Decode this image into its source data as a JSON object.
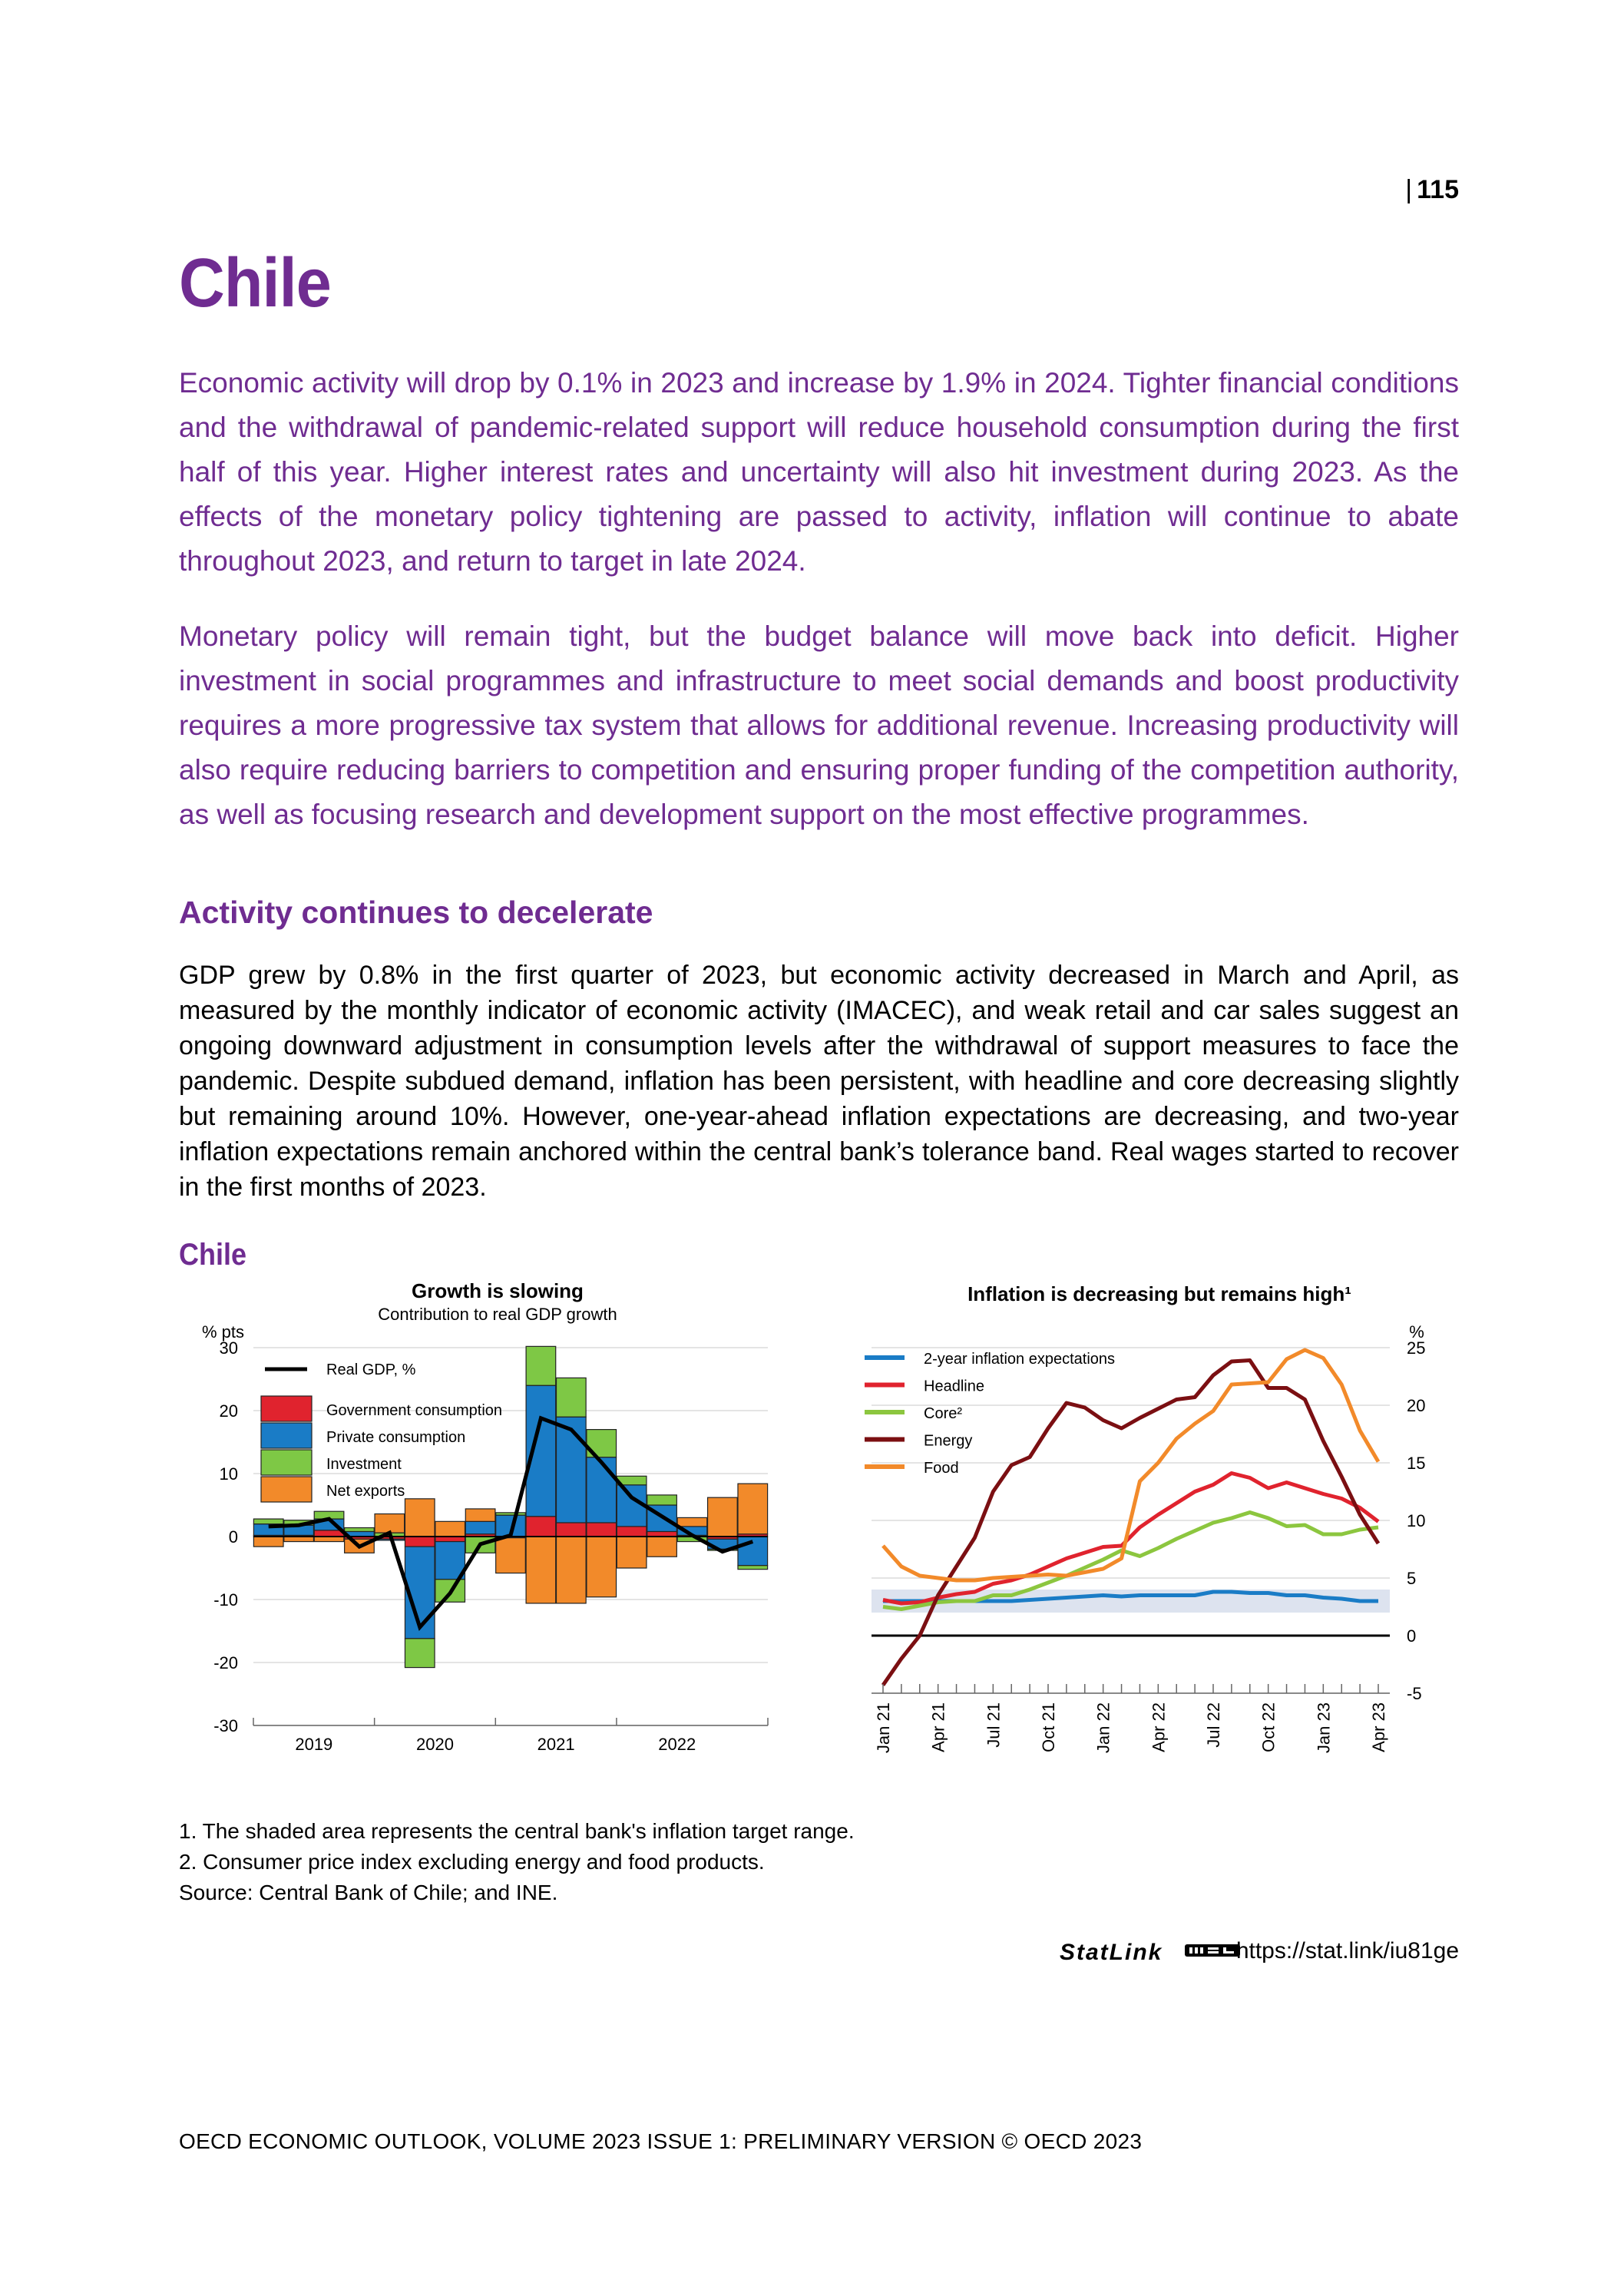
{
  "page": {
    "number": "115",
    "title": "Chile",
    "lead_paragraphs": [
      "Economic activity will drop by 0.1% in 2023 and increase by 1.9% in 2024. Tighter financial conditions and the withdrawal of pandemic-related support will reduce household consumption during the first half of this year. Higher interest rates and uncertainty will also hit investment during 2023. As the effects of the monetary policy tightening are passed to activity, inflation will continue to abate throughout 2023, and return to target in late 2024.",
      "Monetary policy will remain tight, but the budget balance will move back into deficit. Higher investment in social programmes and infrastructure to meet social demands and boost productivity requires a more progressive tax system that allows for additional revenue. Increasing productivity will also require reducing barriers to competition and ensuring proper funding of the competition authority, as well as focusing research and development support on the most effective programmes."
    ],
    "section_heading": "Activity continues to decelerate",
    "body": "GDP grew by 0.8% in the first quarter of 2023, but economic activity decreased in March and April, as measured by the monthly indicator of economic activity (IMACEC), and weak retail and car sales suggest an ongoing downward adjustment in consumption levels after the withdrawal of support measures to face the pandemic. Despite subdued demand, inflation has been persistent, with headline and core decreasing slightly but remaining around 10%. However, one-year-ahead inflation expectations are decreasing, and two-year inflation expectations remain anchored within the central bank’s tolerance band. Real wages started to recover in the first months of 2023.",
    "figure_title": "Chile",
    "notes": [
      "1. The shaded area represents the central bank's inflation target range.",
      "2. Consumer price index excluding energy and food products.",
      "Source: Central Bank of Chile; and INE."
    ],
    "statlink": {
      "label": "StatLink",
      "url": "https://stat.link/iu81ge"
    },
    "footer": "OECD ECONOMIC OUTLOOK, VOLUME 2023 ISSUE 1: PRELIMINARY VERSION © OECD 2023"
  },
  "chart_data": [
    {
      "type": "bar",
      "stacked": true,
      "title": "Growth is slowing",
      "subtitle": "Contribution to real GDP growth",
      "ylabel": "% pts",
      "ylim": [
        -30,
        30
      ],
      "yticks": [
        30,
        20,
        10,
        0,
        -10,
        -20,
        -30
      ],
      "x_tick_labels": [
        "2019",
        "2020",
        "2021",
        "2022"
      ],
      "categories": [
        "2019Q1",
        "2019Q2",
        "2019Q3",
        "2019Q4",
        "2020Q1",
        "2020Q2",
        "2020Q3",
        "2020Q4",
        "2021Q1",
        "2021Q2",
        "2021Q3",
        "2021Q4",
        "2022Q1",
        "2022Q2",
        "2022Q3",
        "2022Q4",
        "2023Q1"
      ],
      "series": [
        {
          "name": "Government consumption",
          "color": "#e0232e",
          "values": [
            0.2,
            0.2,
            1.0,
            -0.4,
            -0.4,
            -1.6,
            -0.8,
            0.4,
            -0.2,
            3.2,
            2.2,
            2.2,
            1.6,
            0.8,
            0.2,
            -0.4,
            0.4
          ]
        },
        {
          "name": "Private consumption",
          "color": "#1a7cc6",
          "values": [
            1.8,
            1.6,
            1.8,
            0.8,
            -0.2,
            -14.6,
            -6.0,
            2.0,
            3.4,
            20.8,
            16.8,
            10.4,
            6.6,
            4.2,
            1.4,
            -1.6,
            -4.6
          ]
        },
        {
          "name": "Investment",
          "color": "#7ec845",
          "values": [
            0.8,
            0.8,
            1.2,
            0.6,
            0.6,
            -4.6,
            -3.6,
            -2.6,
            0.4,
            6.2,
            6.2,
            4.4,
            1.4,
            1.6,
            -0.8,
            -0.2,
            -0.6
          ]
        },
        {
          "name": "Net exports",
          "color": "#f28a2a",
          "values": [
            -1.6,
            -0.8,
            -0.8,
            -2.2,
            3.0,
            6.0,
            2.4,
            2.0,
            -5.6,
            -10.6,
            -10.6,
            -9.6,
            -5.0,
            -3.2,
            1.4,
            6.2,
            8.0
          ]
        }
      ],
      "line_series": {
        "name": "Real GDP, %",
        "color": "#000000",
        "values": [
          1.6,
          1.8,
          2.8,
          -1.6,
          0.6,
          -14.4,
          -9.0,
          -1.2,
          0.2,
          18.8,
          17.0,
          11.8,
          6.2,
          3.2,
          0.2,
          -2.4,
          -0.8
        ]
      },
      "legend": "top-left"
    },
    {
      "type": "line",
      "title": "Inflation is decreasing but remains high¹",
      "ylabel": "%",
      "ylim": [
        -5,
        25
      ],
      "yticks": [
        25,
        20,
        15,
        10,
        5,
        0,
        -5
      ],
      "target_band": [
        2,
        4
      ],
      "x": [
        "Jan 21",
        "Feb 21",
        "Mar 21",
        "Apr 21",
        "May 21",
        "Jun 21",
        "Jul 21",
        "Aug 21",
        "Sep 21",
        "Oct 21",
        "Nov 21",
        "Dec 21",
        "Jan 22",
        "Feb 22",
        "Mar 22",
        "Apr 22",
        "May 22",
        "Jun 22",
        "Jul 22",
        "Aug 22",
        "Sep 22",
        "Oct 22",
        "Nov 22",
        "Dec 22",
        "Jan 23",
        "Feb 23",
        "Mar 23",
        "Apr 23"
      ],
      "x_tick_labels": [
        "Jan 21",
        "Apr 21",
        "Jul 21",
        "Oct 21",
        "Jan 22",
        "Apr 22",
        "Jul 22",
        "Oct 22",
        "Jan 23",
        "Apr 23"
      ],
      "series": [
        {
          "name": "2-year inflation expectations",
          "color": "#1a7cc6",
          "values": [
            3.0,
            3.0,
            3.0,
            3.0,
            3.0,
            3.0,
            3.0,
            3.0,
            3.1,
            3.2,
            3.3,
            3.4,
            3.5,
            3.4,
            3.5,
            3.5,
            3.5,
            3.5,
            3.8,
            3.8,
            3.7,
            3.7,
            3.5,
            3.5,
            3.3,
            3.2,
            3.0,
            3.0
          ]
        },
        {
          "name": "Headline",
          "color": "#e0232e",
          "values": [
            3.1,
            2.8,
            2.9,
            3.3,
            3.6,
            3.8,
            4.5,
            4.8,
            5.3,
            6.0,
            6.7,
            7.2,
            7.7,
            7.8,
            9.4,
            10.5,
            11.5,
            12.5,
            13.1,
            14.1,
            13.7,
            12.8,
            13.3,
            12.8,
            12.3,
            11.9,
            11.1,
            9.9
          ]
        },
        {
          "name": "Core²",
          "color": "#8cc63f",
          "values": [
            2.5,
            2.3,
            2.6,
            2.9,
            3.0,
            3.0,
            3.5,
            3.5,
            4.0,
            4.6,
            5.2,
            5.9,
            6.6,
            7.4,
            6.9,
            7.6,
            8.4,
            9.1,
            9.8,
            10.2,
            10.7,
            10.2,
            9.5,
            9.6,
            8.8,
            8.8,
            9.2,
            9.4
          ]
        },
        {
          "name": "Energy",
          "color": "#7b0f12",
          "values": [
            -4.3,
            -2.0,
            0.0,
            3.5,
            6.0,
            8.5,
            12.5,
            14.8,
            15.5,
            18.0,
            20.2,
            19.8,
            18.7,
            18.0,
            18.9,
            19.7,
            20.5,
            20.7,
            22.6,
            23.8,
            23.9,
            21.5,
            21.5,
            20.5,
            16.9,
            13.8,
            10.5,
            8.0
          ]
        },
        {
          "name": "Food",
          "color": "#f28a2a",
          "values": [
            7.8,
            6.0,
            5.2,
            5.0,
            4.8,
            4.8,
            5.0,
            5.1,
            5.2,
            5.3,
            5.2,
            5.5,
            5.8,
            6.7,
            13.4,
            15.0,
            17.1,
            18.4,
            19.5,
            21.8,
            21.9,
            22.0,
            24.0,
            24.8,
            24.1,
            21.8,
            17.8,
            15.1
          ]
        }
      ],
      "legend": "top-left"
    }
  ]
}
